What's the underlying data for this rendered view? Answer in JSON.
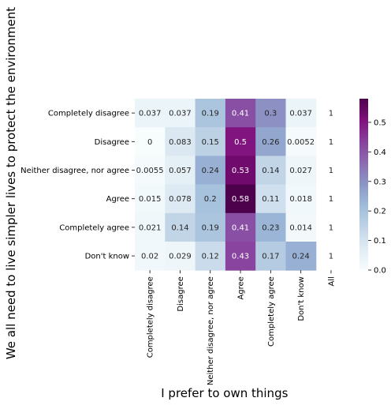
{
  "chart_data": {
    "type": "heatmap",
    "title": "",
    "xlabel": "I prefer to own things",
    "ylabel": "We all need to live simpler lives to protect the environment",
    "x_categories": [
      "Completely disagree",
      "Disagree",
      "Neither disagree, nor agree",
      "Agree",
      "Completely agree",
      "Don't know",
      "All"
    ],
    "y_categories": [
      "Completely disagree",
      "Disagree",
      "Neither disagree, nor agree",
      "Agree",
      "Completely agree",
      "Don't know"
    ],
    "values": [
      [
        0.037,
        0.037,
        0.19,
        0.41,
        0.3,
        0.037,
        1
      ],
      [
        0,
        0.083,
        0.15,
        0.5,
        0.26,
        0.0052,
        1
      ],
      [
        0.0055,
        0.057,
        0.24,
        0.53,
        0.14,
        0.027,
        1
      ],
      [
        0.015,
        0.078,
        0.2,
        0.58,
        0.11,
        0.018,
        1
      ],
      [
        0.021,
        0.14,
        0.19,
        0.41,
        0.23,
        0.014,
        1
      ],
      [
        0.02,
        0.029,
        0.12,
        0.43,
        0.17,
        0.24,
        1
      ]
    ],
    "cell_labels": [
      [
        "0.037",
        "0.037",
        "0.19",
        "0.41",
        "0.3",
        "0.037",
        "1"
      ],
      [
        "0",
        "0.083",
        "0.15",
        "0.5",
        "0.26",
        "0.0052",
        "1"
      ],
      [
        "0.0055",
        "0.057",
        "0.24",
        "0.53",
        "0.14",
        "0.027",
        "1"
      ],
      [
        "0.015",
        "0.078",
        "0.2",
        "0.58",
        "0.11",
        "0.018",
        "1"
      ],
      [
        "0.021",
        "0.14",
        "0.19",
        "0.41",
        "0.23",
        "0.014",
        "1"
      ],
      [
        "0.02",
        "0.029",
        "0.12",
        "0.43",
        "0.17",
        "0.24",
        "1"
      ]
    ],
    "colormap": "BuPu",
    "vmin": 0,
    "vmax": 0.58,
    "colorbar_ticks": [
      "0.0",
      "0.1",
      "0.2",
      "0.3",
      "0.4",
      "0.5"
    ],
    "colorbar_tick_values": [
      0,
      0.1,
      0.2,
      0.3,
      0.4,
      0.5
    ],
    "masked_column": "All"
  }
}
